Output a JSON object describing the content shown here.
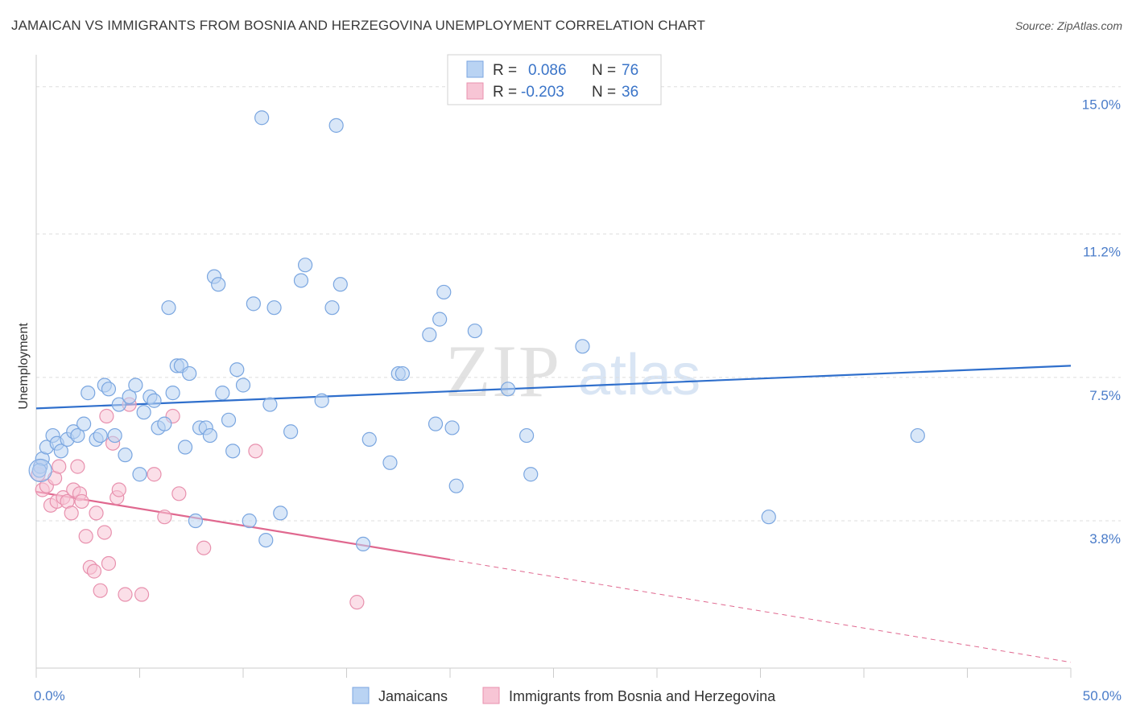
{
  "title": "JAMAICAN VS IMMIGRANTS FROM BOSNIA AND HERZEGOVINA UNEMPLOYMENT CORRELATION CHART",
  "source": "Source: ZipAtlas.com",
  "watermark": {
    "zip": "ZIP",
    "atlas": "atlas"
  },
  "colors": {
    "blue_fill": "#b9d3f3",
    "blue_stroke": "#7aa6e0",
    "blue_line": "#2f6fcc",
    "pink_fill": "#f7c5d5",
    "pink_stroke": "#e891ae",
    "pink_line": "#e0688f",
    "axis_text": "#4a7cc9",
    "grid": "#dddddd"
  },
  "legend": {
    "r_label": "R =",
    "n_label": "N =",
    "rows": [
      {
        "series": "Jamaicans",
        "r": "0.086",
        "n": "76"
      },
      {
        "series": "Immigrants from Bosnia and Herzegovina",
        "r": "-0.203",
        "n": "36"
      }
    ]
  },
  "chart_data": {
    "type": "scatter",
    "title": "JAMAICAN VS IMMIGRANTS FROM BOSNIA AND HERZEGOVINA UNEMPLOYMENT CORRELATION CHART",
    "xlabel": "",
    "ylabel": "Unemployment",
    "xlim": [
      0,
      50
    ],
    "ylim": [
      0,
      15.7
    ],
    "x_tick_labels": [
      "0.0%",
      "50.0%"
    ],
    "y_ticks": [
      3.8,
      7.5,
      11.2,
      15.0
    ],
    "y_tick_labels": [
      "3.8%",
      "7.5%",
      "11.2%",
      "15.0%"
    ],
    "grid": true,
    "series": [
      {
        "name": "Jamaicans",
        "trend": {
          "x": [
            0,
            50
          ],
          "y": [
            6.7,
            7.8
          ]
        },
        "points": [
          [
            0.2,
            5.2
          ],
          [
            0.3,
            5.4
          ],
          [
            0.5,
            5.7
          ],
          [
            0.8,
            6.0
          ],
          [
            1.0,
            5.8
          ],
          [
            1.2,
            5.6
          ],
          [
            1.5,
            5.9
          ],
          [
            1.8,
            6.1
          ],
          [
            2.0,
            6.0
          ],
          [
            2.3,
            6.3
          ],
          [
            2.5,
            7.1
          ],
          [
            2.9,
            5.9
          ],
          [
            3.1,
            6.0
          ],
          [
            3.3,
            7.3
          ],
          [
            3.5,
            7.2
          ],
          [
            3.8,
            6.0
          ],
          [
            4.0,
            6.8
          ],
          [
            4.3,
            5.5
          ],
          [
            4.5,
            7.0
          ],
          [
            4.8,
            7.3
          ],
          [
            5.0,
            5.0
          ],
          [
            5.2,
            6.6
          ],
          [
            5.5,
            7.0
          ],
          [
            5.7,
            6.9
          ],
          [
            5.9,
            6.2
          ],
          [
            6.2,
            6.3
          ],
          [
            6.4,
            9.3
          ],
          [
            6.6,
            7.1
          ],
          [
            6.8,
            7.8
          ],
          [
            7.0,
            7.8
          ],
          [
            7.2,
            5.7
          ],
          [
            7.4,
            7.6
          ],
          [
            7.7,
            3.8
          ],
          [
            7.9,
            6.2
          ],
          [
            8.2,
            6.2
          ],
          [
            8.4,
            6.0
          ],
          [
            8.6,
            10.1
          ],
          [
            8.8,
            9.9
          ],
          [
            9.0,
            7.1
          ],
          [
            9.3,
            6.4
          ],
          [
            9.5,
            5.6
          ],
          [
            9.7,
            7.7
          ],
          [
            10.0,
            7.3
          ],
          [
            10.3,
            3.8
          ],
          [
            10.5,
            9.4
          ],
          [
            10.9,
            14.2
          ],
          [
            11.1,
            3.3
          ],
          [
            11.3,
            6.8
          ],
          [
            11.5,
            9.3
          ],
          [
            11.8,
            4.0
          ],
          [
            12.3,
            6.1
          ],
          [
            12.8,
            10.0
          ],
          [
            13.0,
            10.4
          ],
          [
            13.8,
            6.9
          ],
          [
            14.3,
            9.3
          ],
          [
            14.5,
            14.0
          ],
          [
            14.7,
            9.9
          ],
          [
            15.8,
            3.2
          ],
          [
            16.1,
            5.9
          ],
          [
            17.1,
            5.3
          ],
          [
            17.5,
            7.6
          ],
          [
            17.7,
            7.6
          ],
          [
            19.0,
            8.6
          ],
          [
            19.3,
            6.3
          ],
          [
            19.5,
            9.0
          ],
          [
            19.7,
            9.7
          ],
          [
            20.1,
            6.2
          ],
          [
            20.3,
            4.7
          ],
          [
            21.2,
            8.7
          ],
          [
            22.8,
            7.2
          ],
          [
            23.7,
            6.0
          ],
          [
            23.9,
            5.0
          ],
          [
            26.4,
            8.3
          ],
          [
            35.4,
            3.9
          ],
          [
            42.6,
            6.0
          ],
          [
            0.15,
            5.1
          ]
        ]
      },
      {
        "name": "Immigrants from Bosnia and Herzegovina",
        "trend": {
          "x": [
            0,
            20
          ],
          "y": [
            4.55,
            2.8
          ]
        },
        "trend_dashed": {
          "x": [
            20,
            50
          ],
          "y": [
            2.8,
            0.15
          ]
        },
        "points": [
          [
            0.1,
            5.0
          ],
          [
            0.2,
            5.2
          ],
          [
            0.3,
            4.6
          ],
          [
            0.5,
            4.7
          ],
          [
            0.7,
            4.2
          ],
          [
            0.9,
            4.9
          ],
          [
            1.0,
            4.3
          ],
          [
            1.1,
            5.2
          ],
          [
            1.3,
            4.4
          ],
          [
            1.5,
            4.3
          ],
          [
            1.7,
            4.0
          ],
          [
            1.8,
            4.6
          ],
          [
            2.0,
            5.2
          ],
          [
            2.1,
            4.5
          ],
          [
            2.2,
            4.3
          ],
          [
            2.4,
            3.4
          ],
          [
            2.6,
            2.6
          ],
          [
            2.8,
            2.5
          ],
          [
            2.9,
            4.0
          ],
          [
            3.1,
            2.0
          ],
          [
            3.3,
            3.5
          ],
          [
            3.4,
            6.5
          ],
          [
            3.5,
            2.7
          ],
          [
            3.7,
            5.8
          ],
          [
            3.9,
            4.4
          ],
          [
            4.0,
            4.6
          ],
          [
            4.3,
            1.9
          ],
          [
            4.5,
            6.8
          ],
          [
            5.1,
            1.9
          ],
          [
            5.7,
            5.0
          ],
          [
            6.2,
            3.9
          ],
          [
            6.6,
            6.5
          ],
          [
            6.9,
            4.5
          ],
          [
            8.1,
            3.1
          ],
          [
            10.6,
            5.6
          ],
          [
            15.5,
            1.7
          ]
        ]
      }
    ]
  }
}
